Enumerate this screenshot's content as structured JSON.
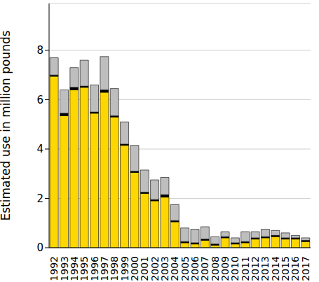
{
  "chart_data": {
    "type": "bar",
    "stacked": true,
    "grid": true,
    "y_label": "Estimated use in million pounds",
    "categories": [
      "1992",
      "1993",
      "1994",
      "1995",
      "1996",
      "1997",
      "1998",
      "1999",
      "2000",
      "2001",
      "2002",
      "2003",
      "2004",
      "2005",
      "2006",
      "2007",
      "2008",
      "2009",
      "2010",
      "2011",
      "2012",
      "2013",
      "2014",
      "2015",
      "2016",
      "2017"
    ],
    "ylim": [
      0,
      9.9
    ],
    "yticks": [
      0,
      2,
      4,
      6,
      8
    ],
    "series": [
      {
        "color": "#FFD700",
        "values": [
          6.95,
          5.35,
          6.4,
          6.5,
          5.45,
          6.3,
          5.3,
          4.15,
          3.05,
          2.2,
          1.9,
          2.05,
          1.05,
          0.2,
          0.15,
          0.3,
          0.1,
          0.4,
          0.15,
          0.2,
          0.35,
          0.4,
          0.45,
          0.35,
          0.35,
          0.25
        ]
      },
      {
        "color": "#000000",
        "values": [
          0.05,
          0.1,
          0.1,
          0.05,
          0.05,
          0.1,
          0.05,
          0.05,
          0.05,
          0.05,
          0.05,
          0.1,
          0.05,
          0.05,
          0.05,
          0.05,
          0.05,
          0.05,
          0.05,
          0.05,
          0.05,
          0.05,
          0.05,
          0.05,
          0.05,
          0.05
        ]
      },
      {
        "color": "#BEBEBE",
        "values": [
          0.7,
          0.95,
          0.8,
          1.05,
          1.1,
          1.35,
          1.1,
          0.9,
          1.05,
          0.9,
          0.8,
          0.7,
          0.65,
          0.55,
          0.55,
          0.5,
          0.3,
          0.2,
          0.2,
          0.4,
          0.25,
          0.3,
          0.2,
          0.2,
          0.1,
          0.1
        ]
      }
    ]
  }
}
